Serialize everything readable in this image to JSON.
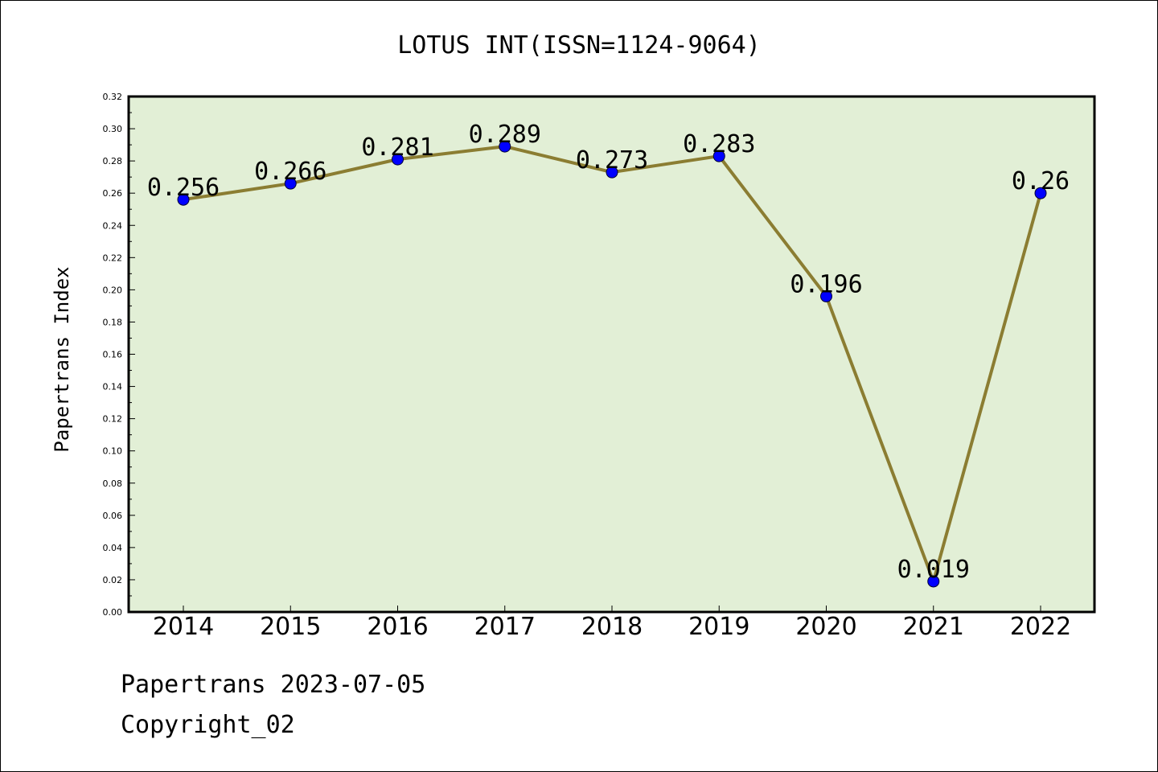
{
  "chart_data": {
    "type": "line",
    "title": "LOTUS INT(ISSN=1124-9064)",
    "xlabel": "",
    "ylabel": "Papertrans Index",
    "categories": [
      "2014",
      "2015",
      "2016",
      "2017",
      "2018",
      "2019",
      "2020",
      "2021",
      "2022"
    ],
    "series": [
      {
        "values": [
          0.256,
          0.266,
          0.281,
          0.289,
          0.273,
          0.283,
          0.196,
          0.019,
          0.26
        ],
        "labels": [
          "0.256",
          "0.266",
          "0.281",
          "0.289",
          "0.273",
          "0.283",
          "0.196",
          "0.019",
          "0.26"
        ],
        "line_color": "#8b7d32",
        "marker_color": "#0000ff"
      }
    ],
    "ylim": [
      0,
      0.32
    ],
    "y_ticks": [
      "0.00",
      "0.02",
      "0.04",
      "0.06",
      "0.08",
      "0.10",
      "0.12",
      "0.14",
      "0.16",
      "0.18",
      "0.20",
      "0.22",
      "0.24",
      "0.26",
      "0.28",
      "0.30",
      "0.32"
    ],
    "grid": false,
    "legend": "none",
    "plot_background": "#e2efd6"
  },
  "footer": {
    "line1": "Papertrans 2023-07-05",
    "line2": "Copyright_02"
  }
}
